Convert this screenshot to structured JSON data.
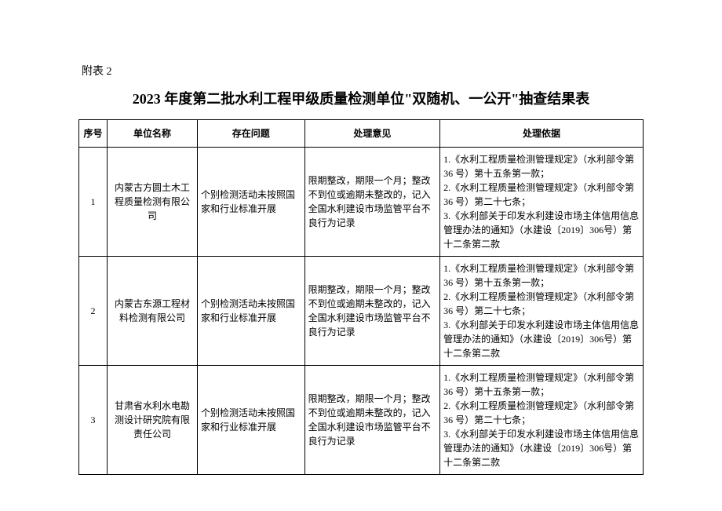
{
  "attachment_label": "附表 2",
  "title": "2023 年度第二批水利工程甲级质量检测单位\"双随机、一公开\"抽查结果表",
  "headers": {
    "seq": "序号",
    "name": "单位名称",
    "problem": "存在问题",
    "opinion": "处理意见",
    "basis": "处理依据"
  },
  "rows": [
    {
      "seq": "1",
      "name": "内蒙古方圆土木工程质量检测有限公司",
      "problem": "个别检测活动未按照国家和行业标准开展",
      "opinion": "限期整改，期限一个月；整改不到位或逾期未整改的，记入全国水利建设市场监管平台不良行为记录",
      "basis": "1.《水利工程质量检测管理规定》（水利部令第 36 号）第十五条第一款；\n2.《水利工程质量检测管理规定》（水利部令第 36 号）第二十七条；\n3.《水利部关于印发水利建设市场主体信用信息管理办法的通知》（水建设〔2019〕306号）第十二条第二款"
    },
    {
      "seq": "2",
      "name": "内蒙古东源工程材料检测有限公司",
      "problem": "个别检测活动未按照国家和行业标准开展",
      "opinion": "限期整改，期限一个月；整改不到位或逾期未整改的，记入全国水利建设市场监管平台不良行为记录",
      "basis": "1.《水利工程质量检测管理规定》（水利部令第 36 号）第十五条第一款；\n2.《水利工程质量检测管理规定》（水利部令第 36 号）第二十七条；\n3.《水利部关于印发水利建设市场主体信用信息管理办法的通知》（水建设〔2019〕306号）第十二条第二款"
    },
    {
      "seq": "3",
      "name": "甘肃省水利水电勘测设计研究院有限责任公司",
      "problem": "个别检测活动未按照国家和行业标准开展",
      "opinion": "限期整改，期限一个月；整改不到位或逾期未整改的，记入全国水利建设市场监管平台不良行为记录",
      "basis": "1.《水利工程质量检测管理规定》（水利部令第 36 号）第十五条第一款；\n2.《水利工程质量检测管理规定》（水利部令第 36 号）第二十七条；\n3.《水利部关于印发水利建设市场主体信用信息管理办法的通知》（水建设〔2019〕306号）第十二条第二款"
    }
  ]
}
